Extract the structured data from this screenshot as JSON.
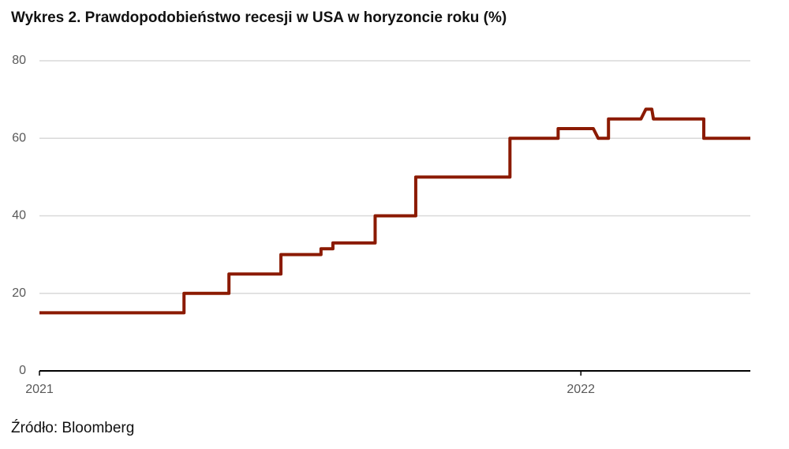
{
  "chart_data": {
    "type": "line",
    "title": "Wykres 2. Prawdopodobieństwo recesji w USA w horyzoncie roku (%)",
    "source": "Źródło: Bloomberg",
    "x": [
      2021.0,
      2021.267,
      2021.267,
      2021.35,
      2021.35,
      2021.446,
      2021.446,
      2021.52,
      2021.52,
      2021.542,
      2021.542,
      2021.62,
      2021.62,
      2021.695,
      2021.695,
      2021.869,
      2021.869,
      2021.958,
      2021.958,
      2022.023,
      2022.032,
      2022.051,
      2022.051,
      2022.111,
      2022.12,
      2022.131,
      2022.134,
      2022.227,
      2022.227,
      2022.313
    ],
    "series": [
      {
        "color": "#8b1a00",
        "values": [
          15,
          15,
          20,
          20,
          25,
          25,
          30,
          30,
          31.5,
          31.5,
          33,
          33,
          40,
          40,
          50,
          50,
          60,
          60,
          62.5,
          62.5,
          60,
          60,
          65,
          65,
          67.5,
          67.5,
          65,
          65,
          60,
          60
        ]
      }
    ],
    "xlim": [
      2021,
      2022.313
    ],
    "xticks": [
      2021,
      2022
    ],
    "ylim": [
      0,
      80
    ],
    "yticks": [
      0,
      20,
      40,
      60,
      80
    ],
    "grid": true
  }
}
